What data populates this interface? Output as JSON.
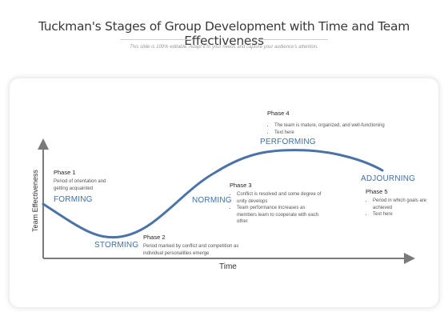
{
  "title": "Tuckman's Stages of Group Development with Time and Team Effectiveness",
  "subtitle": "This slide is 100% editable. Adapt it to your needs and capture your audience's attention.",
  "axes": {
    "y_label": "Team Effectiveness",
    "x_label": "Time"
  },
  "stages": {
    "forming": "FORMING",
    "storming": "STORMING",
    "norming": "NORMING",
    "performing": "PERFORMING",
    "adjourning": "ADJOURNING"
  },
  "phases": {
    "p1": {
      "title": "Phase 1",
      "text": "Period of orientation and getting acquainted"
    },
    "p2": {
      "title": "Phase 2",
      "text": "Period marked by conflict and competition as individual personalities emerge"
    },
    "p3": {
      "title": "Phase 3",
      "bullets": [
        "Conflict is resolved and some degree of unity develops",
        "Team performance increases as members learn to cooperate with each other"
      ]
    },
    "p4": {
      "title": "Phase 4",
      "bullets": [
        "The team is mature, organized, and well-functioning",
        "Text here"
      ]
    },
    "p5": {
      "title": "Phase 5",
      "bullets": [
        "Period in which goals are achieved",
        "Text here"
      ]
    }
  },
  "colors": {
    "curve": "#4a73a8",
    "axis": "#7a7a7a",
    "stage_text": "#3f6fa8"
  }
}
